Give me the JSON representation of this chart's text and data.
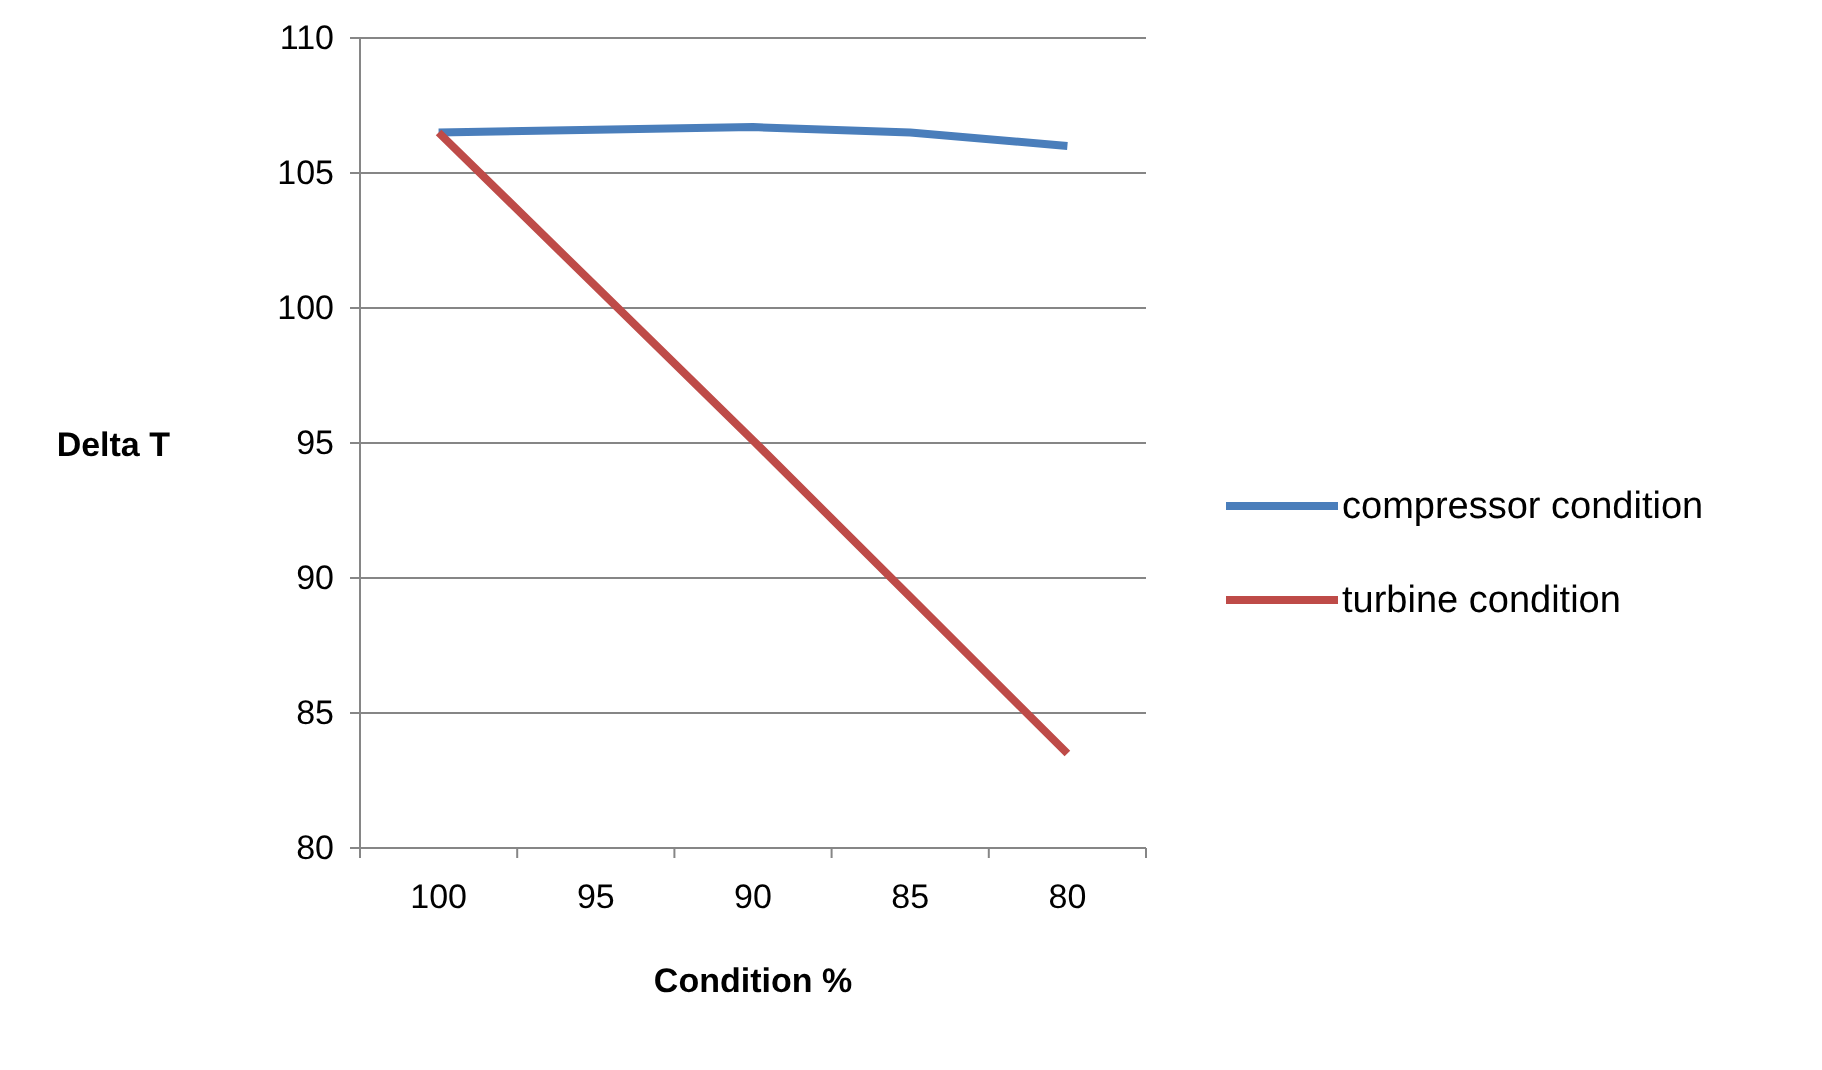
{
  "chart_data": {
    "type": "line",
    "xlabel": "Condition %",
    "ylabel": "Delta T",
    "categories": [
      "100",
      "95",
      "90",
      "85",
      "80"
    ],
    "series": [
      {
        "name": "compressor condition",
        "color": "#4a7ebb",
        "values": [
          106.5,
          106.6,
          106.7,
          106.5,
          106.0
        ]
      },
      {
        "name": "turbine condition",
        "color": "#be4b48",
        "values": [
          106.5,
          100.8,
          95.1,
          89.3,
          83.5
        ]
      }
    ],
    "ylim": [
      80,
      110
    ],
    "yticks": [
      80,
      85,
      90,
      95,
      100,
      105,
      110
    ],
    "grid": "y",
    "legend": "right",
    "marker": "none",
    "line_style": "solid"
  }
}
